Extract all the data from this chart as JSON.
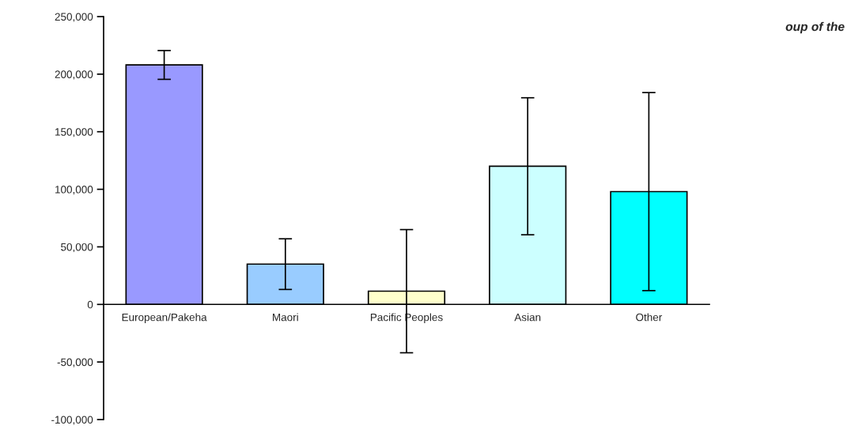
{
  "chart_data": {
    "type": "bar",
    "title": "oup of the",
    "categories": [
      "European/Pakeha",
      "Maori",
      "Pacific Peoples",
      "Asian",
      "Other"
    ],
    "values": [
      208000,
      35000,
      11500,
      120000,
      98000
    ],
    "errors": [
      12500,
      22000,
      53500,
      59500,
      86000
    ],
    "colors": [
      "#9999ff",
      "#99ccff",
      "#ffffcc",
      "#ccffff",
      "#00ffff"
    ],
    "ylim": [
      -100000,
      250000
    ],
    "yticks": [
      {
        "value": -100000,
        "label": "-100,000"
      },
      {
        "value": -50000,
        "label": "-50,000"
      },
      0,
      {
        "value": 50000,
        "label": "50,000"
      },
      {
        "value": 100000,
        "label": "100,000"
      },
      {
        "value": 150000,
        "label": "150,000"
      },
      {
        "value": 200000,
        "label": "200,000"
      },
      {
        "value": 250000,
        "label": "250,000"
      }
    ],
    "grid": false,
    "legend": false
  }
}
